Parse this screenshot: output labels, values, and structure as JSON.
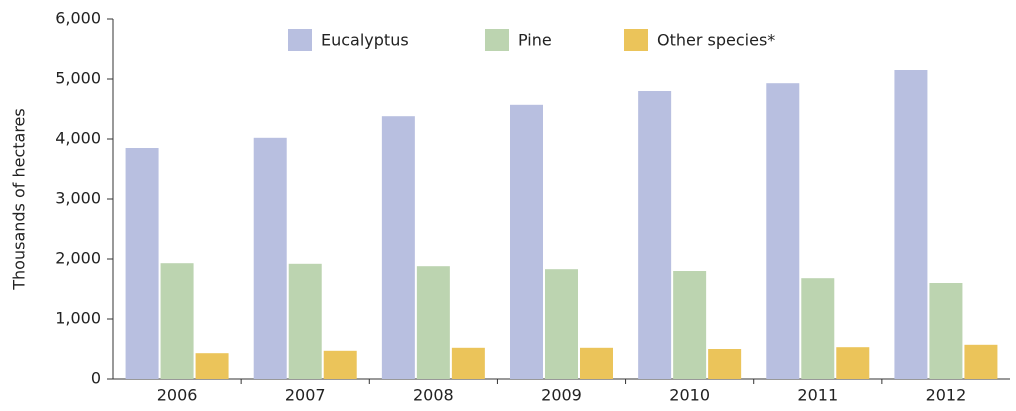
{
  "chart_data": {
    "type": "bar",
    "y_label": "Thousands of hectares",
    "categories": [
      "2006",
      "2007",
      "2008",
      "2009",
      "2010",
      "2011",
      "2012"
    ],
    "series": [
      {
        "name": "Eucalyptus",
        "color": "#b8bfe0",
        "values": [
          3850,
          4020,
          4380,
          4570,
          4800,
          4930,
          5150
        ]
      },
      {
        "name": "Pine",
        "color": "#bcd4b0",
        "values": [
          1930,
          1920,
          1880,
          1830,
          1800,
          1680,
          1600
        ]
      },
      {
        "name": "Other species*",
        "color": "#ebc45a",
        "values": [
          430,
          470,
          520,
          520,
          500,
          530,
          570
        ]
      }
    ],
    "ylim": [
      0,
      6000
    ],
    "yticks": [
      0,
      {
        "value": 1000,
        "label": "1,000"
      },
      {
        "value": 2000,
        "label": "2,000"
      },
      {
        "value": 3000,
        "label": "3,000"
      },
      {
        "value": 4000,
        "label": "4,000"
      },
      {
        "value": 5000,
        "label": "5,000"
      },
      {
        "value": 6000,
        "label": "6,000"
      }
    ],
    "grid": false
  }
}
